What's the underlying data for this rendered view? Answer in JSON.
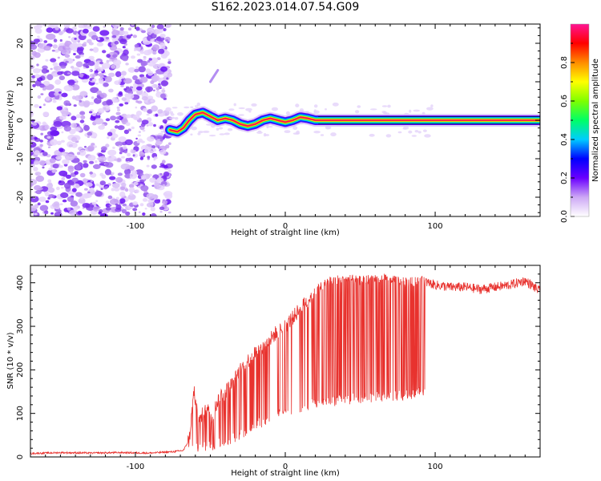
{
  "title": "S162.2023.014.07.54.G09",
  "chart_data": [
    {
      "type": "heatmap",
      "title": "S162.2023.014.07.54.G09",
      "xlabel": "Height of straight line (km)",
      "ylabel": "Frequency (Hz)",
      "xlim": [
        -170,
        170
      ],
      "ylim": [
        -25,
        25
      ],
      "x_ticks": [
        -100,
        0,
        100
      ],
      "x_tick_labels": [
        "-100",
        "0",
        "100"
      ],
      "y_ticks": [
        -20,
        -10,
        0,
        10,
        20
      ],
      "y_tick_labels": [
        "-20",
        "-10",
        "0",
        "10",
        "20"
      ],
      "grid": false,
      "noise_region_x": [
        -170,
        -77
      ],
      "ridge": {
        "x": [
          -77,
          -72,
          -68,
          -64,
          -60,
          -55,
          -50,
          -45,
          -40,
          -35,
          -30,
          -25,
          -20,
          -15,
          -10,
          -5,
          0,
          5,
          10,
          15,
          20,
          30,
          40,
          60,
          80,
          100,
          120,
          140,
          160,
          170
        ],
        "y": [
          -2.5,
          -3,
          -2,
          0,
          1.5,
          2,
          1,
          0,
          0.5,
          0,
          -1,
          -1.5,
          -1,
          0,
          0.5,
          0,
          -0.5,
          0,
          0.8,
          0.5,
          0,
          0,
          0,
          0,
          0,
          0,
          0,
          0,
          0,
          0
        ]
      },
      "faint_feature": {
        "x": [
          -50,
          -45
        ],
        "y": [
          10,
          13
        ]
      },
      "colorbar": {
        "label": "Normalized spectral amplitude",
        "range": [
          0.0,
          1.0
        ],
        "ticks": [
          0.0,
          0.2,
          0.4,
          0.6,
          0.8
        ],
        "tick_labels": [
          "0.0",
          "0.2",
          "0.4",
          "0.6",
          "0.8"
        ],
        "colors": [
          "#ffffff",
          "#cda8f5",
          "#6a00ff",
          "#0000ff",
          "#00ccff",
          "#00ff66",
          "#7fff00",
          "#ffff00",
          "#ff8c00",
          "#ff0000",
          "#ff1493"
        ]
      }
    },
    {
      "type": "line",
      "xlabel": "Height of straight line (km)",
      "ylabel": "SNR (10 * v/v)",
      "xlim": [
        -170,
        170
      ],
      "ylim": [
        0,
        440
      ],
      "x_ticks": [
        -100,
        0,
        100
      ],
      "x_tick_labels": [
        "-100",
        "0",
        "100"
      ],
      "y_ticks": [
        0,
        100,
        200,
        300,
        400
      ],
      "y_tick_labels": [
        "0",
        "100",
        "200",
        "300",
        "400"
      ],
      "grid": false,
      "series": [
        {
          "color": "#e8322e",
          "x": [
            -170,
            -150,
            -130,
            -110,
            -90,
            -75,
            -68,
            -64,
            -61,
            -57,
            -55,
            -52,
            -49,
            -45,
            -40,
            -35,
            -30,
            -25,
            -20,
            -15,
            -10,
            -5,
            0,
            5,
            10,
            15,
            20,
            25,
            30,
            40,
            50,
            60,
            70,
            80,
            90,
            100,
            110,
            120,
            130,
            140,
            150,
            160,
            170
          ],
          "values": [
            8,
            10,
            9,
            10,
            9,
            12,
            15,
            40,
            150,
            80,
            100,
            120,
            90,
            130,
            150,
            170,
            200,
            220,
            240,
            250,
            270,
            290,
            300,
            320,
            340,
            360,
            380,
            395,
            405,
            410,
            405,
            410,
            410,
            400,
            405,
            395,
            390,
            390,
            385,
            390,
            395,
            405,
            380
          ],
          "dip_floor": {
            "x": [
              -60,
              -40,
              -20,
              0,
              20,
              40,
              60,
              80,
              94
            ],
            "values": [
              5,
              20,
              60,
              90,
              110,
              120,
              125,
              130,
              140
            ]
          }
        }
      ]
    }
  ]
}
